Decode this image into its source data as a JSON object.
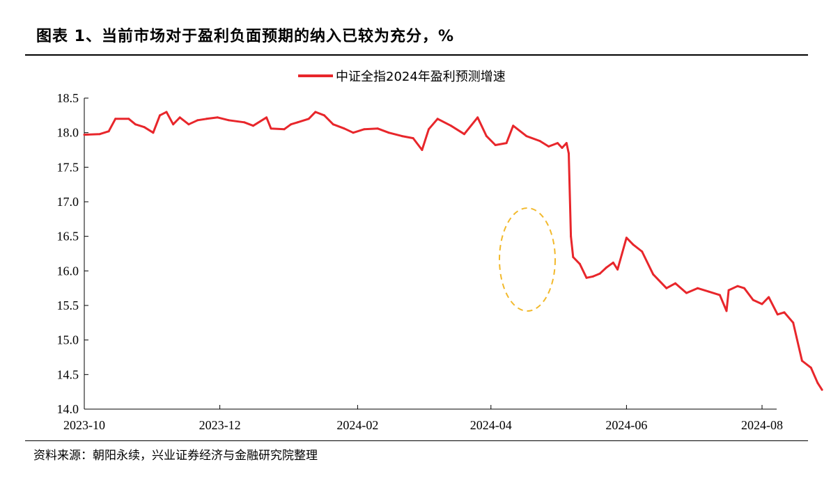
{
  "header": {
    "title": "图表 1、当前市场对于盈利负面预期的纳入已较为充分，%"
  },
  "footer": {
    "source": "资料来源：朝阳永续，兴业证券经济与金融研究院整理"
  },
  "colors": {
    "series": "#e8262b",
    "annotation": "#f2b92c"
  },
  "chart_data": {
    "type": "line",
    "title": "",
    "xlabel": "",
    "ylabel": "",
    "ylim": [
      14.0,
      18.5
    ],
    "yticks": [
      "14.0",
      "14.5",
      "15.0",
      "15.5",
      "16.0",
      "16.5",
      "17.0",
      "17.5",
      "18.0",
      "18.5"
    ],
    "xticks": [
      "2023-10",
      "2023-12",
      "2024-02",
      "2024-04",
      "2024-06",
      "2024-08"
    ],
    "grid": false,
    "legend": "top-center",
    "annotation": "dashed yellow ellipse highlighting 2024-04 to 2024-05 rebound",
    "series": [
      {
        "name": "中证全指2024年盈利预测增速",
        "points": [
          [
            "2023-10-01",
            17.97
          ],
          [
            "2023-10-08",
            17.98
          ],
          [
            "2023-10-12",
            18.02
          ],
          [
            "2023-10-15",
            18.2
          ],
          [
            "2023-10-21",
            18.2
          ],
          [
            "2023-10-24",
            18.12
          ],
          [
            "2023-10-28",
            18.08
          ],
          [
            "2023-11-01",
            18.0
          ],
          [
            "2023-11-04",
            18.25
          ],
          [
            "2023-11-07",
            18.3
          ],
          [
            "2023-11-10",
            18.12
          ],
          [
            "2023-11-13",
            18.22
          ],
          [
            "2023-11-17",
            18.12
          ],
          [
            "2023-11-21",
            18.18
          ],
          [
            "2023-11-25",
            18.2
          ],
          [
            "2023-11-30",
            18.22
          ],
          [
            "2023-12-05",
            18.18
          ],
          [
            "2023-12-12",
            18.15
          ],
          [
            "2023-12-16",
            18.1
          ],
          [
            "2023-12-22",
            18.22
          ],
          [
            "2023-12-24",
            18.06
          ],
          [
            "2023-12-30",
            18.05
          ],
          [
            "2024-01-02",
            18.12
          ],
          [
            "2024-01-05",
            18.15
          ],
          [
            "2024-01-10",
            18.2
          ],
          [
            "2024-01-13",
            18.3
          ],
          [
            "2024-01-17",
            18.25
          ],
          [
            "2024-01-21",
            18.12
          ],
          [
            "2024-01-26",
            18.06
          ],
          [
            "2024-01-30",
            18.0
          ],
          [
            "2024-02-04",
            18.05
          ],
          [
            "2024-02-10",
            18.06
          ],
          [
            "2024-02-15",
            18.0
          ],
          [
            "2024-02-21",
            17.95
          ],
          [
            "2024-02-26",
            17.92
          ],
          [
            "2024-03-01",
            17.75
          ],
          [
            "2024-03-04",
            18.05
          ],
          [
            "2024-03-08",
            18.2
          ],
          [
            "2024-03-14",
            18.1
          ],
          [
            "2024-03-20",
            17.98
          ],
          [
            "2024-03-26",
            18.22
          ],
          [
            "2024-03-30",
            17.95
          ],
          [
            "2024-04-03",
            17.82
          ],
          [
            "2024-04-08",
            17.85
          ],
          [
            "2024-04-11",
            18.1
          ],
          [
            "2024-04-17",
            17.95
          ],
          [
            "2024-04-23",
            17.88
          ],
          [
            "2024-04-27",
            17.8
          ],
          [
            "2024-05-01",
            17.85
          ],
          [
            "2024-05-03",
            17.78
          ],
          [
            "2024-05-05",
            17.85
          ],
          [
            "2024-05-06",
            17.7
          ],
          [
            "2024-05-07",
            16.5
          ],
          [
            "2024-05-08",
            16.2
          ],
          [
            "2024-05-11",
            16.1
          ],
          [
            "2024-05-14",
            15.9
          ],
          [
            "2024-05-17",
            15.92
          ],
          [
            "2024-05-20",
            15.96
          ],
          [
            "2024-05-23",
            16.05
          ],
          [
            "2024-05-26",
            16.12
          ],
          [
            "2024-05-28",
            16.02
          ],
          [
            "2024-05-30",
            16.25
          ],
          [
            "2024-06-01",
            16.48
          ],
          [
            "2024-06-04",
            16.38
          ],
          [
            "2024-06-08",
            16.28
          ],
          [
            "2024-06-13",
            15.95
          ],
          [
            "2024-06-19",
            15.75
          ],
          [
            "2024-06-23",
            15.82
          ],
          [
            "2024-06-28",
            15.68
          ],
          [
            "2024-07-03",
            15.75
          ],
          [
            "2024-07-08",
            15.7
          ],
          [
            "2024-07-13",
            15.65
          ],
          [
            "2024-07-16",
            15.42
          ],
          [
            "2024-07-17",
            15.72
          ],
          [
            "2024-07-21",
            15.78
          ],
          [
            "2024-07-24",
            15.75
          ],
          [
            "2024-07-28",
            15.58
          ],
          [
            "2024-08-01",
            15.52
          ],
          [
            "2024-08-04",
            15.62
          ],
          [
            "2024-08-08",
            15.37
          ],
          [
            "2024-08-11",
            15.4
          ],
          [
            "2024-08-15",
            15.25
          ],
          [
            "2024-08-19",
            14.7
          ],
          [
            "2024-08-23",
            14.6
          ],
          [
            "2024-08-26",
            14.38
          ],
          [
            "2024-08-28",
            14.28
          ]
        ]
      }
    ]
  }
}
